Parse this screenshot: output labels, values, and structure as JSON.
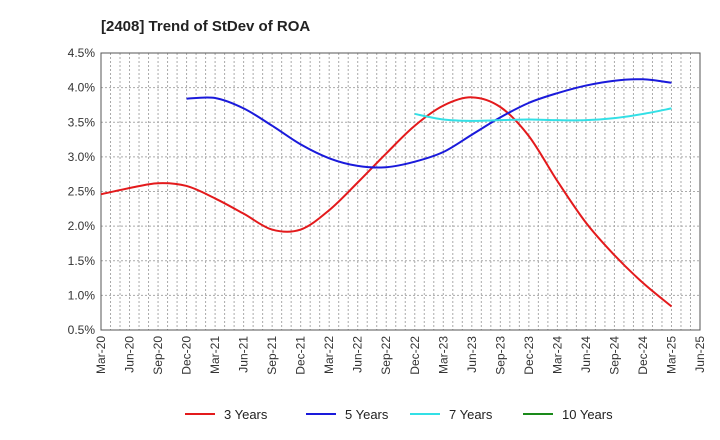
{
  "chart_data": {
    "type": "line",
    "title": "[2408]  Trend of StDev of ROA",
    "xlabel": "",
    "ylabel": "",
    "x": [
      "Mar-20",
      "Jun-20",
      "Sep-20",
      "Dec-20",
      "Mar-21",
      "Jun-21",
      "Sep-21",
      "Dec-21",
      "Mar-22",
      "Jun-22",
      "Sep-22",
      "Dec-22",
      "Mar-23",
      "Jun-23",
      "Sep-23",
      "Dec-23",
      "Mar-24",
      "Jun-24",
      "Sep-24",
      "Dec-24",
      "Mar-25",
      "Jun-25"
    ],
    "ylim": [
      0.5,
      4.5
    ],
    "yticks": [
      "0.5%",
      "1.0%",
      "1.5%",
      "2.0%",
      "2.5%",
      "3.0%",
      "3.5%",
      "4.0%",
      "4.5%"
    ],
    "grid": true,
    "legend_position": "bottom",
    "series": [
      {
        "name": "3 Years",
        "color": "#e31a1c",
        "values": [
          2.46,
          2.55,
          2.62,
          2.58,
          2.4,
          2.18,
          1.95,
          1.95,
          2.23,
          2.63,
          3.05,
          3.45,
          3.74,
          3.86,
          3.72,
          3.3,
          2.65,
          2.05,
          1.58,
          1.18,
          0.84,
          null
        ]
      },
      {
        "name": "5 Years",
        "color": "#1a1adb",
        "values": [
          null,
          null,
          null,
          3.84,
          3.85,
          3.7,
          3.45,
          3.18,
          2.98,
          2.87,
          2.85,
          2.93,
          3.07,
          3.32,
          3.57,
          3.78,
          3.92,
          4.03,
          4.1,
          4.12,
          4.07,
          null
        ]
      },
      {
        "name": "7 Years",
        "color": "#33e0e6",
        "values": [
          null,
          null,
          null,
          null,
          null,
          null,
          null,
          null,
          null,
          null,
          null,
          3.62,
          3.54,
          3.52,
          3.53,
          3.54,
          3.53,
          3.53,
          3.56,
          3.62,
          3.7,
          null
        ]
      },
      {
        "name": "10 Years",
        "color": "#1a8a1a",
        "values": [
          null,
          null,
          null,
          null,
          null,
          null,
          null,
          null,
          null,
          null,
          null,
          null,
          null,
          null,
          null,
          null,
          null,
          null,
          null,
          null,
          null,
          null
        ]
      }
    ]
  }
}
